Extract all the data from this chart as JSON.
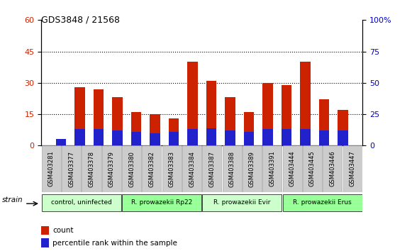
{
  "title": "GDS3848 / 21568",
  "samples": [
    "GSM403281",
    "GSM403377",
    "GSM403378",
    "GSM403379",
    "GSM403380",
    "GSM403382",
    "GSM403383",
    "GSM403384",
    "GSM403387",
    "GSM403388",
    "GSM403389",
    "GSM403391",
    "GSM403444",
    "GSM403445",
    "GSM403446",
    "GSM403447"
  ],
  "count_values": [
    1,
    28,
    27,
    23,
    16,
    15,
    13,
    40,
    31,
    23,
    16,
    30,
    29,
    40,
    22,
    17
  ],
  "percentile_values": [
    5,
    13,
    13,
    12,
    11,
    10,
    11,
    13,
    14,
    12,
    11,
    13,
    13,
    13,
    12,
    12
  ],
  "count_color": "#cc2200",
  "percentile_color": "#2222cc",
  "bar_width": 0.55,
  "ylim_left": [
    0,
    60
  ],
  "ylim_right": [
    0,
    100
  ],
  "yticks_left": [
    0,
    15,
    30,
    45,
    60
  ],
  "yticks_right": [
    0,
    25,
    50,
    75,
    100
  ],
  "yticklabels_right": [
    "0",
    "25",
    "50",
    "75",
    "100%"
  ],
  "grid_yticks": [
    15,
    30,
    45
  ],
  "groups": [
    {
      "label": "control, uninfected",
      "start": 0,
      "end": 4
    },
    {
      "label": "R. prowazekii Rp22",
      "start": 4,
      "end": 8
    },
    {
      "label": "R. prowazekii Evir",
      "start": 8,
      "end": 12
    },
    {
      "label": "R. prowazekii Erus",
      "start": 12,
      "end": 16
    }
  ],
  "group_colors": [
    "#ccffcc",
    "#99ff99",
    "#ccffcc",
    "#99ff99"
  ],
  "legend_count_label": "count",
  "legend_percentile_label": "percentile rank within the sample",
  "strain_label": "strain",
  "tick_label_bg": "#cccccc",
  "background_color": "#ffffff"
}
